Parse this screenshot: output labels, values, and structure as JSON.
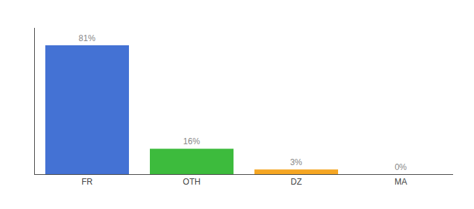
{
  "chart_data": {
    "type": "bar",
    "categories": [
      "FR",
      "OTH",
      "DZ",
      "MA"
    ],
    "values": [
      81,
      16,
      3,
      0
    ],
    "value_labels": [
      "81%",
      "16%",
      "3%",
      "0%"
    ],
    "data_labels": true,
    "colors": [
      "#4472d4",
      "#3dbb3d",
      "#f5a623",
      "#4472d4"
    ],
    "ylim": [
      0,
      92
    ],
    "tick_labels": "x",
    "grid": false
  }
}
